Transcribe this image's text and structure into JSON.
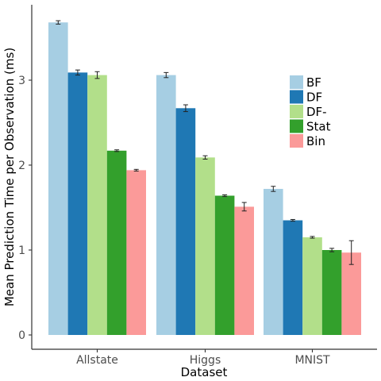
{
  "chart_data": {
    "type": "bar",
    "title": "",
    "xlabel": "Dataset",
    "ylabel": "Mean Prediction Time per Observation (ms)",
    "categories": [
      "Allstate",
      "Higgs",
      "MNIST"
    ],
    "ylim": [
      0,
      3.85
    ],
    "yticks": [
      0,
      1,
      2,
      3
    ],
    "grid": false,
    "legend_position": "right",
    "series": [
      {
        "name": "BF",
        "color": "#a6cee3",
        "values": [
          3.68,
          3.06,
          1.72
        ],
        "errors": [
          0.02,
          0.03,
          0.03
        ]
      },
      {
        "name": "DF",
        "color": "#1f78b4",
        "values": [
          3.09,
          2.67,
          1.35
        ],
        "errors": [
          0.03,
          0.04,
          0.01
        ]
      },
      {
        "name": "DF-",
        "color": "#b2df8a",
        "values": [
          3.06,
          2.09,
          1.15
        ],
        "errors": [
          0.04,
          0.02,
          0.01
        ]
      },
      {
        "name": "Stat",
        "color": "#33a02c",
        "values": [
          2.17,
          1.64,
          1.0
        ],
        "errors": [
          0.01,
          0.01,
          0.02
        ]
      },
      {
        "name": "Bin",
        "color": "#fb9a99",
        "values": [
          1.94,
          1.51,
          0.97
        ],
        "errors": [
          0.01,
          0.05,
          0.14
        ]
      }
    ]
  }
}
